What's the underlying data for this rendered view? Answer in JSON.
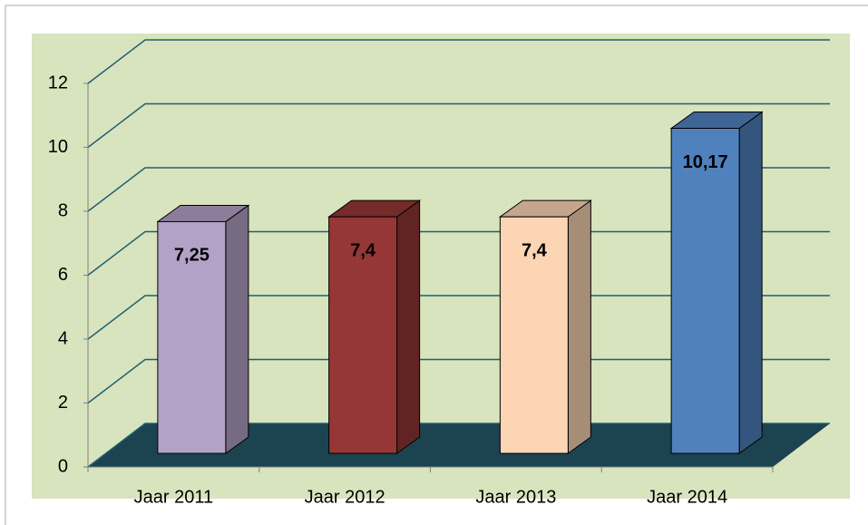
{
  "chart_data": {
    "type": "bar",
    "categories": [
      "Jaar 2011",
      "Jaar 2012",
      "Jaar 2013",
      "Jaar 2014"
    ],
    "values": [
      7.25,
      7.4,
      7.4,
      10.17
    ],
    "value_labels": [
      "7,25",
      "7,4",
      "7,4",
      "10,17"
    ],
    "colors": [
      "#b3a2c7",
      "#953735",
      "#fcd5b5",
      "#4f81bd"
    ],
    "ylim": [
      0,
      12
    ],
    "yticks": [
      0,
      2,
      4,
      6,
      8,
      10,
      12
    ],
    "grid": true
  }
}
